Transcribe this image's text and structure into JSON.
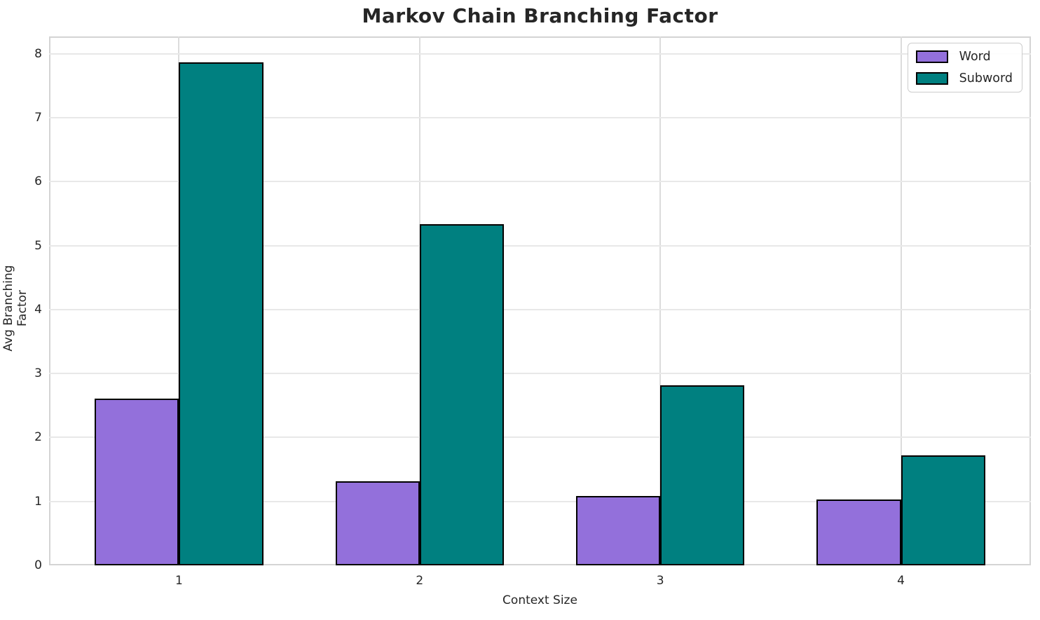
{
  "chart_data": {
    "type": "bar",
    "title": "Markov Chain Branching Factor",
    "xlabel": "Context Size",
    "ylabel": "Avg Branching Factor",
    "categories": [
      "1",
      "2",
      "3",
      "4"
    ],
    "x": [
      1,
      2,
      3,
      4
    ],
    "series": [
      {
        "name": "Word",
        "color": "#9370DB",
        "values": [
          2.61,
          1.32,
          1.09,
          1.03
        ]
      },
      {
        "name": "Subword",
        "color": "#008080",
        "values": [
          7.87,
          5.33,
          2.81,
          1.72
        ]
      }
    ],
    "bar_width": 0.35,
    "bar_edge_color": "#000000",
    "xlim": [
      0.46,
      4.54
    ],
    "ylim": [
      0,
      8.27
    ],
    "yticks": [
      0,
      1,
      2,
      3,
      4,
      5,
      6,
      7,
      8
    ],
    "grid": true,
    "legend_position": "upper right",
    "colors": {
      "grid_h": "#e8e8e8",
      "grid_v": "#dcdcdc",
      "spine": "#d4d4d4",
      "text": "#262626",
      "background": "#ffffff"
    }
  }
}
